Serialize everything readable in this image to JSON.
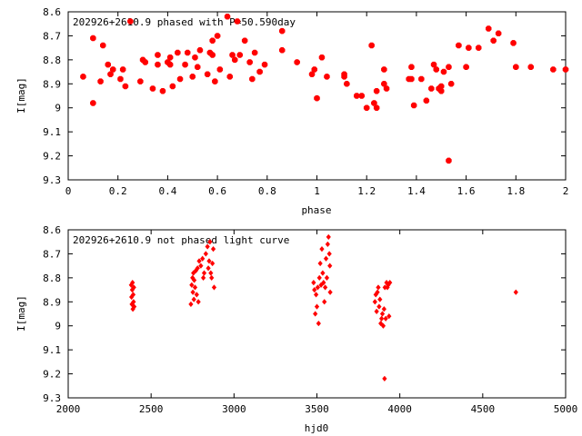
{
  "chart_data": [
    {
      "type": "scatter",
      "title": "202926+2610.9 phased with P=50.590day",
      "xlabel": "phase",
      "ylabel": "I[mag]",
      "xlim": [
        0,
        2
      ],
      "ylim": [
        9.3,
        8.6
      ],
      "y_inverted": true,
      "x_ticks": [
        "0",
        "0.2",
        "0.4",
        "0.6",
        "0.8",
        "1",
        "1.2",
        "1.4",
        "1.6",
        "1.8",
        "2"
      ],
      "y_ticks": [
        "8.6",
        "8.7",
        "8.8",
        "8.9",
        "9",
        "9.1",
        "9.2",
        "9.3"
      ],
      "marker": "star",
      "color": "#ff0000",
      "points": [
        [
          0.06,
          8.87
        ],
        [
          0.1,
          8.71
        ],
        [
          0.1,
          8.98
        ],
        [
          0.13,
          8.89
        ],
        [
          0.14,
          8.74
        ],
        [
          0.16,
          8.82
        ],
        [
          0.17,
          8.86
        ],
        [
          0.18,
          8.84
        ],
        [
          0.21,
          8.88
        ],
        [
          0.22,
          8.84
        ],
        [
          0.23,
          8.91
        ],
        [
          0.25,
          8.64
        ],
        [
          0.29,
          8.89
        ],
        [
          0.3,
          8.8
        ],
        [
          0.31,
          8.81
        ],
        [
          0.34,
          8.92
        ],
        [
          0.36,
          8.78
        ],
        [
          0.36,
          8.82
        ],
        [
          0.38,
          8.93
        ],
        [
          0.4,
          8.81
        ],
        [
          0.41,
          8.79
        ],
        [
          0.41,
          8.82
        ],
        [
          0.42,
          8.91
        ],
        [
          0.44,
          8.77
        ],
        [
          0.45,
          8.88
        ],
        [
          0.47,
          8.82
        ],
        [
          0.48,
          8.77
        ],
        [
          0.5,
          8.87
        ],
        [
          0.51,
          8.79
        ],
        [
          0.52,
          8.83
        ],
        [
          0.53,
          8.76
        ],
        [
          0.56,
          8.86
        ],
        [
          0.57,
          8.77
        ],
        [
          0.58,
          8.72
        ],
        [
          0.58,
          8.78
        ],
        [
          0.59,
          8.89
        ],
        [
          0.6,
          8.7
        ],
        [
          0.61,
          8.84
        ],
        [
          0.64,
          8.62
        ],
        [
          0.65,
          8.87
        ],
        [
          0.66,
          8.78
        ],
        [
          0.67,
          8.8
        ],
        [
          0.68,
          8.64
        ],
        [
          0.69,
          8.78
        ],
        [
          0.71,
          8.72
        ],
        [
          0.73,
          8.81
        ],
        [
          0.74,
          8.88
        ],
        [
          0.75,
          8.77
        ],
        [
          0.77,
          8.85
        ],
        [
          0.79,
          8.82
        ],
        [
          0.86,
          8.68
        ],
        [
          0.86,
          8.76
        ],
        [
          0.92,
          8.81
        ],
        [
          0.98,
          8.86
        ],
        [
          0.99,
          8.84
        ],
        [
          1.0,
          8.96
        ],
        [
          1.02,
          8.79
        ],
        [
          1.04,
          8.87
        ],
        [
          1.11,
          8.86
        ],
        [
          1.11,
          8.87
        ],
        [
          1.12,
          8.9
        ],
        [
          1.16,
          8.95
        ],
        [
          1.18,
          8.95
        ],
        [
          1.2,
          9.0
        ],
        [
          1.22,
          8.74
        ],
        [
          1.23,
          8.98
        ],
        [
          1.24,
          8.93
        ],
        [
          1.24,
          9.0
        ],
        [
          1.27,
          8.84
        ],
        [
          1.27,
          8.9
        ],
        [
          1.28,
          8.92
        ],
        [
          1.37,
          8.88
        ],
        [
          1.38,
          8.83
        ],
        [
          1.38,
          8.88
        ],
        [
          1.39,
          8.99
        ],
        [
          1.42,
          8.88
        ],
        [
          1.44,
          8.97
        ],
        [
          1.46,
          8.92
        ],
        [
          1.47,
          8.82
        ],
        [
          1.48,
          8.84
        ],
        [
          1.49,
          8.92
        ],
        [
          1.5,
          8.93
        ],
        [
          1.5,
          8.91
        ],
        [
          1.51,
          8.85
        ],
        [
          1.53,
          9.22
        ],
        [
          1.53,
          8.83
        ],
        [
          1.54,
          8.9
        ],
        [
          1.57,
          8.74
        ],
        [
          1.6,
          8.83
        ],
        [
          1.61,
          8.75
        ],
        [
          1.65,
          8.75
        ],
        [
          1.69,
          8.67
        ],
        [
          1.71,
          8.72
        ],
        [
          1.73,
          8.69
        ],
        [
          1.79,
          8.73
        ],
        [
          1.8,
          8.83
        ],
        [
          1.86,
          8.83
        ],
        [
          1.95,
          8.84
        ],
        [
          2.0,
          8.84
        ]
      ]
    },
    {
      "type": "scatter",
      "title": "202926+2610.9 not phased light curve",
      "xlabel": "hjd0",
      "ylabel": "I[mag]",
      "xlim": [
        2000,
        5000
      ],
      "ylim": [
        9.3,
        8.6
      ],
      "y_inverted": true,
      "x_ticks": [
        "2000",
        "2500",
        "3000",
        "3500",
        "4000",
        "4500",
        "5000"
      ],
      "y_ticks": [
        "8.6",
        "8.7",
        "8.8",
        "8.9",
        "9",
        "9.1",
        "9.2",
        "9.3"
      ],
      "marker": "diamond",
      "color": "#ff0000",
      "points": [
        [
          2380,
          8.83
        ],
        [
          2382,
          8.88
        ],
        [
          2384,
          8.91
        ],
        [
          2386,
          8.85
        ],
        [
          2388,
          8.82
        ],
        [
          2390,
          8.93
        ],
        [
          2392,
          8.87
        ],
        [
          2394,
          8.9
        ],
        [
          2396,
          8.84
        ],
        [
          2398,
          8.92
        ],
        [
          2740,
          8.91
        ],
        [
          2745,
          8.83
        ],
        [
          2750,
          8.8
        ],
        [
          2752,
          8.86
        ],
        [
          2755,
          8.78
        ],
        [
          2758,
          8.89
        ],
        [
          2760,
          8.81
        ],
        [
          2765,
          8.84
        ],
        [
          2770,
          8.77
        ],
        [
          2775,
          8.87
        ],
        [
          2780,
          8.76
        ],
        [
          2785,
          8.9
        ],
        [
          2790,
          8.73
        ],
        [
          2800,
          8.75
        ],
        [
          2810,
          8.72
        ],
        [
          2815,
          8.8
        ],
        [
          2820,
          8.78
        ],
        [
          2830,
          8.7
        ],
        [
          2840,
          8.67
        ],
        [
          2845,
          8.76
        ],
        [
          2850,
          8.73
        ],
        [
          2855,
          8.65
        ],
        [
          2860,
          8.78
        ],
        [
          2865,
          8.8
        ],
        [
          2870,
          8.74
        ],
        [
          2875,
          8.68
        ],
        [
          2880,
          8.84
        ],
        [
          3480,
          8.82
        ],
        [
          3485,
          8.85
        ],
        [
          3490,
          8.95
        ],
        [
          3495,
          8.87
        ],
        [
          3500,
          8.92
        ],
        [
          3505,
          8.84
        ],
        [
          3510,
          8.99
        ],
        [
          3515,
          8.8
        ],
        [
          3520,
          8.74
        ],
        [
          3525,
          8.83
        ],
        [
          3530,
          8.68
        ],
        [
          3535,
          8.78
        ],
        [
          3540,
          8.82
        ],
        [
          3545,
          8.9
        ],
        [
          3550,
          8.84
        ],
        [
          3555,
          8.72
        ],
        [
          3560,
          8.8
        ],
        [
          3565,
          8.66
        ],
        [
          3570,
          8.63
        ],
        [
          3575,
          8.7
        ],
        [
          3578,
          8.75
        ],
        [
          3580,
          8.86
        ],
        [
          3850,
          8.9
        ],
        [
          3855,
          8.87
        ],
        [
          3860,
          8.94
        ],
        [
          3865,
          8.86
        ],
        [
          3870,
          8.84
        ],
        [
          3875,
          8.92
        ],
        [
          3880,
          8.89
        ],
        [
          3885,
          8.99
        ],
        [
          3890,
          8.97
        ],
        [
          3895,
          8.95
        ],
        [
          3900,
          9.0
        ],
        [
          3905,
          8.93
        ],
        [
          3908,
          9.22
        ],
        [
          3910,
          8.84
        ],
        [
          3915,
          8.97
        ],
        [
          3920,
          8.82
        ],
        [
          3925,
          8.84
        ],
        [
          3930,
          8.83
        ],
        [
          3935,
          8.96
        ],
        [
          3940,
          8.82
        ],
        [
          4700,
          8.86
        ]
      ]
    }
  ]
}
